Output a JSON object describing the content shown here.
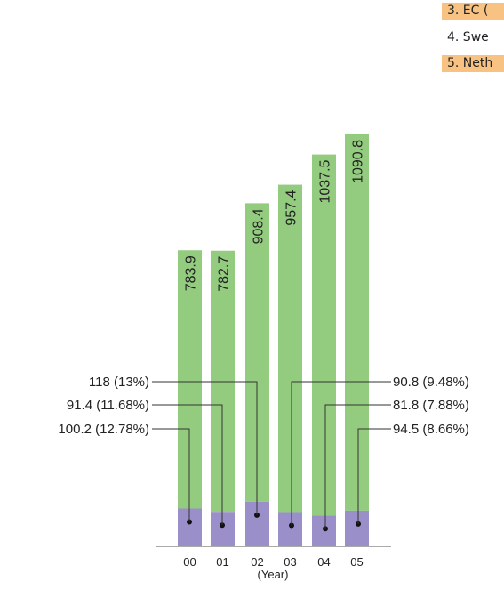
{
  "chart_data": {
    "type": "bar",
    "stacked": true,
    "categories": [
      "00",
      "01",
      "02",
      "03",
      "04",
      "05"
    ],
    "totals": [
      783.9,
      782.7,
      908.4,
      957.4,
      1037.5,
      1090.8
    ],
    "total_labels": [
      "783.9",
      "782.7",
      "908.4",
      "957.4",
      "1037.5",
      "1090.8"
    ],
    "series": [
      {
        "values": [
          100.2,
          91.4,
          118,
          90.8,
          81.8,
          94.5
        ]
      },
      {
        "values": [
          683.7,
          691.3,
          790.4,
          866.6,
          955.7,
          996.3
        ]
      }
    ],
    "callouts": [
      "100.2 (12.78%)",
      "91.4 (11.68%)",
      "118 (13%)",
      "90.8 (9.48%)",
      "81.8 (7.88%)",
      "94.5 (8.66%)"
    ],
    "xlabel": "(Year)",
    "legend": {
      "position": "top-right",
      "items": [
        {
          "label": "3. EC (",
          "highlight": true
        },
        {
          "label": "4. Swe",
          "highlight": false
        },
        {
          "label": "5. Neth",
          "highlight": true
        }
      ]
    },
    "colors": {
      "upper": "#93cc7f",
      "lower": "#9b8fca",
      "highlight": "#f8c282",
      "line": "#333333"
    }
  }
}
